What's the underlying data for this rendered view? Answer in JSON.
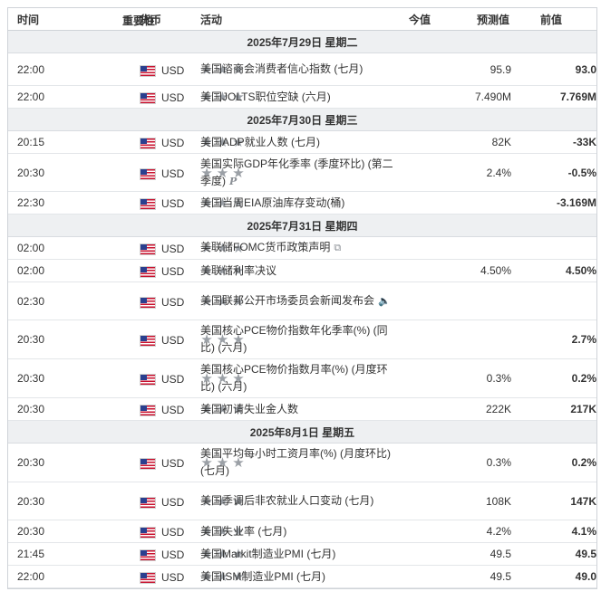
{
  "header": {
    "time": "时间",
    "currency": "货币",
    "importance": "重要性",
    "event": "活动",
    "actual": "今值",
    "forecast": "预测值",
    "previous": "前值"
  },
  "days": [
    {
      "date": "2025年7月29日  星期二",
      "events": [
        {
          "time": "22:00",
          "currency": "USD",
          "event": "美国谘商会消费者信心指数 (七月)",
          "actual": "",
          "forecast": "95.9",
          "previous": "93.0",
          "icon": ""
        },
        {
          "time": "22:00",
          "currency": "USD",
          "event": "美国JOLTS职位空缺 (六月)",
          "actual": "",
          "forecast": "7.490M",
          "previous": "7.769M",
          "icon": ""
        }
      ]
    },
    {
      "date": "2025年7月30日  星期三",
      "events": [
        {
          "time": "20:15",
          "currency": "USD",
          "event": "美国ADP就业人数 (七月)",
          "actual": "",
          "forecast": "82K",
          "previous": "-33K",
          "icon": ""
        },
        {
          "time": "20:30",
          "currency": "USD",
          "event": "美国实际GDP年化季率 (季度环比) (第二季度)",
          "actual": "",
          "forecast": "2.4%",
          "previous": "-0.5%",
          "icon": "preliminary-icon"
        },
        {
          "time": "22:30",
          "currency": "USD",
          "event": "美国当周EIA原油库存变动(桶)",
          "actual": "",
          "forecast": "",
          "previous": "-3.169M",
          "icon": ""
        }
      ]
    },
    {
      "date": "2025年7月31日  星期四",
      "events": [
        {
          "time": "02:00",
          "currency": "USD",
          "event": "美联储FOMC货币政策声明",
          "actual": "",
          "forecast": "",
          "previous": "",
          "icon": "document-icon"
        },
        {
          "time": "02:00",
          "currency": "USD",
          "event": "美联储利率决议",
          "actual": "",
          "forecast": "4.50%",
          "previous": "4.50%",
          "icon": ""
        },
        {
          "time": "02:30",
          "currency": "USD",
          "event": "美国联邦公开市场委员会新闻发布会",
          "actual": "",
          "forecast": "",
          "previous": "",
          "icon": "speaker-icon"
        },
        {
          "time": "20:30",
          "currency": "USD",
          "event": "美国核心PCE物价指数年化季率(%) (同比) (六月)",
          "actual": "",
          "forecast": "",
          "previous": "2.7%",
          "icon": ""
        },
        {
          "time": "20:30",
          "currency": "USD",
          "event": "美国核心PCE物价指数月率(%) (月度环比) (六月)",
          "actual": "",
          "forecast": "0.3%",
          "previous": "0.2%",
          "icon": ""
        },
        {
          "time": "20:30",
          "currency": "USD",
          "event": "美国初请失业金人数",
          "actual": "",
          "forecast": "222K",
          "previous": "217K",
          "icon": ""
        }
      ]
    },
    {
      "date": "2025年8月1日  星期五",
      "events": [
        {
          "time": "20:30",
          "currency": "USD",
          "event": "美国平均每小时工资月率(%) (月度环比) (七月)",
          "actual": "",
          "forecast": "0.3%",
          "previous": "0.2%",
          "icon": ""
        },
        {
          "time": "20:30",
          "currency": "USD",
          "event": "美国季调后非农就业人口变动 (七月)",
          "actual": "",
          "forecast": "108K",
          "previous": "147K",
          "icon": ""
        },
        {
          "time": "20:30",
          "currency": "USD",
          "event": "美国失业率 (七月)",
          "actual": "",
          "forecast": "4.2%",
          "previous": "4.1%",
          "icon": ""
        },
        {
          "time": "21:45",
          "currency": "USD",
          "event": "美国Markit制造业PMI (七月)",
          "actual": "",
          "forecast": "49.5",
          "previous": "49.5",
          "icon": ""
        },
        {
          "time": "22:00",
          "currency": "USD",
          "event": "美国ISM制造业PMI (七月)",
          "actual": "",
          "forecast": "49.5",
          "previous": "49.0",
          "icon": ""
        }
      ]
    }
  ],
  "importance_stars": 3,
  "icons": {
    "preliminary-icon": "P",
    "document-icon": "⧉",
    "speaker-icon": "🔈"
  },
  "colors": {
    "header_row": "#eef0f2",
    "star": "#9ba0a6",
    "border": "#cfd3d8"
  }
}
